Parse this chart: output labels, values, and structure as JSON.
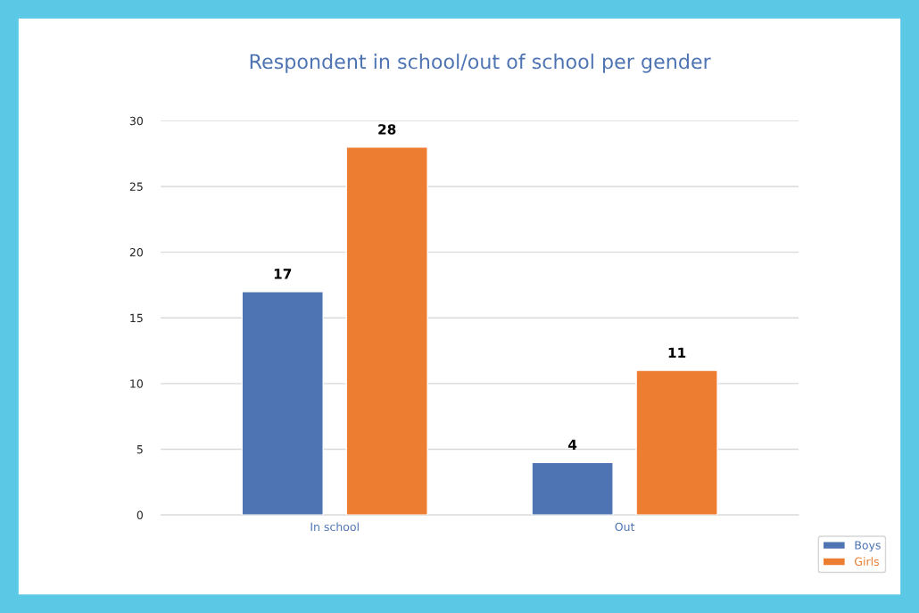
{
  "chart_data": {
    "type": "bar",
    "title": "Respondent in school/out of school per gender",
    "categories": [
      "In school",
      "Out"
    ],
    "series": [
      {
        "name": "Boys",
        "color": "#4e74b3",
        "values": [
          17,
          4
        ]
      },
      {
        "name": "Girls",
        "color": "#ed7d31",
        "values": [
          28,
          11
        ]
      }
    ],
    "ylim": [
      0,
      30
    ],
    "yticks": [
      0,
      5,
      10,
      15,
      20,
      25,
      30
    ],
    "grid": "y",
    "legend": "bottom right",
    "data_labels": true
  }
}
